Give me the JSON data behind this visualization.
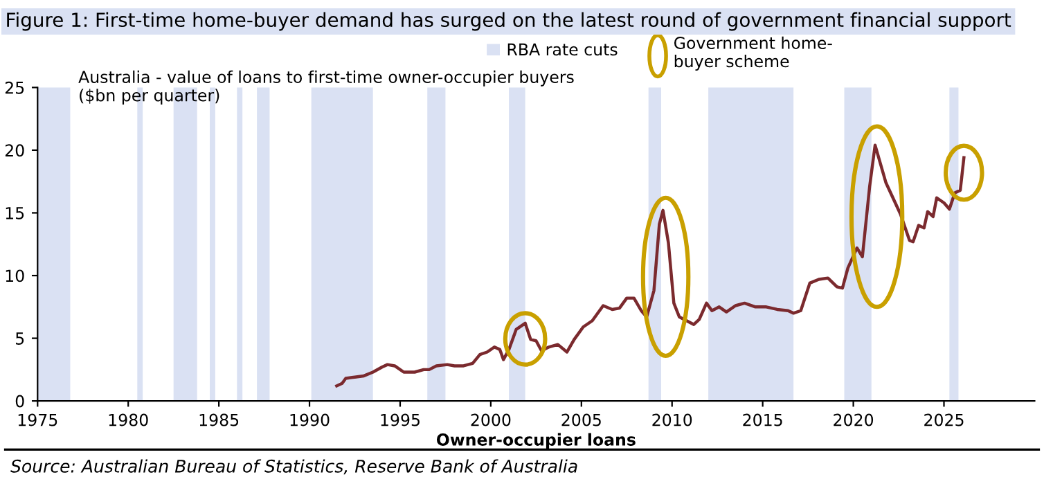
{
  "chart_data": {
    "type": "line",
    "title": "Figure 1: First-time home-buyer demand has surged on the latest round of government financial support",
    "ylabel": "Australia - value of loans to first-time owner-occupier buyers\n($bn per quarter)",
    "xlabel": "Owner-occupier loans",
    "annotations": [
      "Source: Australian Bureau of Statistics, Reserve Bank of Australia",
      "Government home-\nbuyer scheme"
    ],
    "x": [
      1991.5,
      1991.8,
      1992.0,
      1992.5,
      1993.0,
      1993.5,
      1994.0,
      1994.3,
      1994.7,
      1995.2,
      1995.8,
      1996.3,
      1996.6,
      1997.0,
      1997.6,
      1998.0,
      1998.5,
      1999.0,
      1999.4,
      1999.8,
      2000.2,
      2000.5,
      2000.7,
      2001.0,
      2001.4,
      2001.9,
      2002.2,
      2002.5,
      2002.8,
      2003.2,
      2003.7,
      2004.2,
      2004.6,
      2005.1,
      2005.6,
      2006.2,
      2006.7,
      2007.1,
      2007.5,
      2007.9,
      2008.3,
      2008.6,
      2009.0,
      2009.3,
      2009.5,
      2009.8,
      2010.1,
      2010.4,
      2010.8,
      2011.2,
      2011.5,
      2011.9,
      2012.2,
      2012.6,
      2013.0,
      2013.5,
      2014.0,
      2014.6,
      2015.2,
      2015.8,
      2016.4,
      2016.7,
      2017.1,
      2017.6,
      2018.1,
      2018.6,
      2019.1,
      2019.4,
      2019.7,
      2020.2,
      2020.5,
      2020.9,
      2021.2,
      2021.8,
      2022.6,
      2023.1,
      2023.3,
      2023.6,
      2023.9,
      2024.1,
      2024.4,
      2024.6,
      2025.0,
      2025.3,
      2025.6,
      2025.9,
      2026.1
    ],
    "series": [
      {
        "color": "#7b2a2e",
        "values": [
          1.2,
          1.4,
          1.8,
          1.9,
          2.0,
          2.3,
          2.7,
          2.9,
          2.8,
          2.3,
          2.3,
          2.5,
          2.5,
          2.8,
          2.9,
          2.8,
          2.8,
          3.0,
          3.7,
          3.9,
          4.3,
          4.1,
          3.3,
          4.1,
          5.7,
          6.2,
          4.9,
          4.8,
          4.0,
          4.3,
          4.5,
          3.9,
          4.9,
          5.9,
          6.4,
          7.6,
          7.3,
          7.4,
          8.2,
          8.2,
          7.2,
          6.7,
          8.8,
          14.1,
          15.2,
          12.6,
          7.8,
          6.7,
          6.4,
          6.1,
          6.5,
          7.8,
          7.2,
          7.5,
          7.1,
          7.6,
          7.8,
          7.5,
          7.5,
          7.3,
          7.2,
          7.0,
          7.2,
          9.4,
          9.7,
          9.8,
          9.1,
          9.0,
          10.6,
          12.2,
          11.5,
          17.1,
          20.4,
          17.4,
          14.9,
          12.8,
          12.7,
          14.0,
          13.8,
          15.1,
          14.7,
          16.2,
          15.8,
          15.3,
          16.6,
          16.8,
          19.4
        ]
      }
    ],
    "xlim": [
      1975,
      2030
    ],
    "xticks": [
      1975,
      1980,
      1985,
      1990,
      1995,
      2000,
      2005,
      2010,
      2015,
      2020,
      2025
    ],
    "ylim": [
      0,
      25
    ],
    "yticks": [
      0,
      5,
      10,
      15,
      20,
      25
    ],
    "grid": false,
    "legend": "top",
    "marker": "none",
    "line_style": "solid",
    "bands": [
      {
        "axis": "x",
        "from": 1975.0,
        "to": 1976.8,
        "label": "RBA rate cuts",
        "color": "#dae1f3"
      },
      {
        "axis": "x",
        "from": 1980.5,
        "to": 1980.8,
        "color": "#dae1f3"
      },
      {
        "axis": "x",
        "from": 1982.5,
        "to": 1983.8,
        "color": "#dae1f3"
      },
      {
        "axis": "x",
        "from": 1984.5,
        "to": 1984.8,
        "color": "#dae1f3"
      },
      {
        "axis": "x",
        "from": 1986.0,
        "to": 1986.3,
        "color": "#dae1f3"
      },
      {
        "axis": "x",
        "from": 1987.1,
        "to": 1987.8,
        "color": "#dae1f3"
      },
      {
        "axis": "x",
        "from": 1990.1,
        "to": 1993.5,
        "color": "#dae1f3"
      },
      {
        "axis": "x",
        "from": 1996.5,
        "to": 1997.5,
        "color": "#dae1f3"
      },
      {
        "axis": "x",
        "from": 2001.0,
        "to": 2001.9,
        "color": "#dae1f3"
      },
      {
        "axis": "x",
        "from": 2008.7,
        "to": 2009.4,
        "color": "#dae1f3"
      },
      {
        "axis": "x",
        "from": 2012.0,
        "to": 2016.7,
        "color": "#dae1f3"
      },
      {
        "axis": "x",
        "from": 2019.5,
        "to": 2021.0,
        "color": "#dae1f3"
      },
      {
        "axis": "x",
        "from": 2025.3,
        "to": 2025.8,
        "color": "#dae1f3"
      }
    ]
  }
}
